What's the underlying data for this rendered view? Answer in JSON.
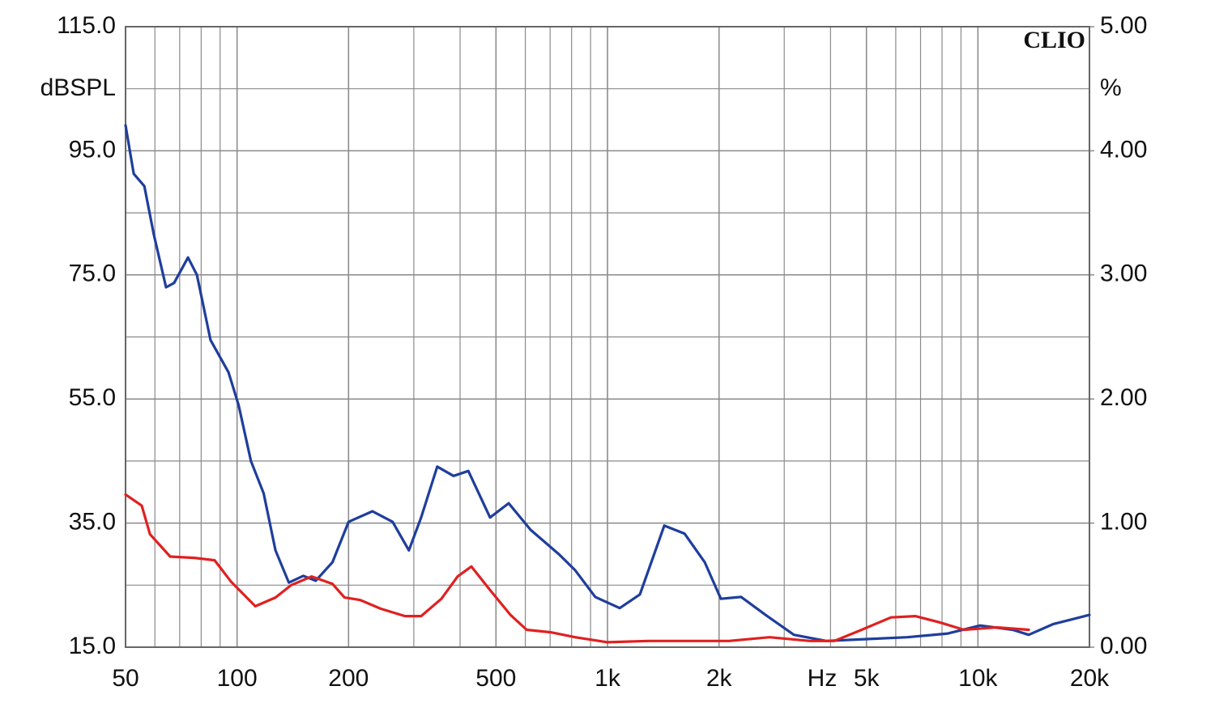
{
  "chart_data": {
    "type": "line",
    "logo": "CLIO",
    "ylabel": "dBSPL",
    "y2label": "%",
    "xlabel": "Hz",
    "xscale": "log",
    "xlim": [
      50,
      20000
    ],
    "xticks": [
      50,
      100,
      200,
      500,
      {
        "value": 1000,
        "label": "1k"
      },
      {
        "value": 2000,
        "label": "2k"
      },
      {
        "value": 5000,
        "label": "5k"
      },
      {
        "value": 10000,
        "label": "10k"
      },
      {
        "value": 20000,
        "label": "20k"
      }
    ],
    "ylim": [
      15,
      115
    ],
    "yticks": [
      {
        "value": 15,
        "label": "15.0"
      },
      {
        "value": 35,
        "label": "35.0"
      },
      {
        "value": 55,
        "label": "55.0"
      },
      {
        "value": 75,
        "label": "75.0"
      },
      {
        "value": 95,
        "label": "95.0"
      },
      {
        "value": 115,
        "label": "115.0"
      }
    ],
    "yminor": [
      25,
      45,
      65,
      85,
      105
    ],
    "y2lim": [
      0,
      5
    ],
    "y2ticks": [
      {
        "value": 0,
        "label": "0.00"
      },
      {
        "value": 1,
        "label": "1.00"
      },
      {
        "value": 2,
        "label": "2.00"
      },
      {
        "value": 3,
        "label": "3.00"
      },
      {
        "value": 4,
        "label": "4.00"
      },
      {
        "value": 5,
        "label": "5.00"
      }
    ],
    "grid": true,
    "series": [
      {
        "color": "#1f3e9c",
        "x": [
          50,
          52.6,
          56.2,
          59.6,
          64.3,
          67.6,
          73.7,
          77.9,
          84.8,
          94.8,
          101,
          109,
          118,
          127,
          138,
          151,
          163,
          181,
          200,
          232,
          263,
          291,
          314,
          347,
          384,
          421,
          482,
          541,
          620,
          739,
          818,
          927,
          1079,
          1223,
          1423,
          1614,
          1830,
          2024,
          2295,
          2670,
          3185,
          3894,
          5008,
          6443,
          8290,
          10140,
          12400,
          13710,
          15940,
          20000
        ],
        "values": [
          99.1,
          91.3,
          89.3,
          81.5,
          73,
          73.7,
          77.8,
          75,
          64.5,
          59.3,
          54,
          45,
          39.8,
          30.6,
          25.4,
          26.5,
          25.7,
          28.7,
          35.2,
          36.9,
          35.2,
          30.6,
          35.9,
          44.1,
          42.6,
          43.4,
          35.9,
          38.2,
          33.9,
          30,
          27.4,
          23.1,
          21.3,
          23.5,
          34.6,
          33.3,
          28.7,
          22.8,
          23.1,
          20.2,
          17,
          16,
          16.3,
          16.6,
          17.2,
          18.5,
          17.8,
          17,
          18.7,
          20.2
        ]
      },
      {
        "color": "#e02020",
        "axis": "y2",
        "x": [
          50,
          55.3,
          58.2,
          66,
          76.7,
          87,
          96.2,
          112,
          127,
          140,
          159,
          181,
          195,
          215,
          244,
          284,
          314,
          356,
          394,
          429,
          482,
          547,
          605,
          703,
          818,
          1000,
          1287,
          1655,
          2128,
          2737,
          3520,
          4095,
          4760,
          5825,
          6775,
          7880,
          9165,
          11210,
          13710
        ],
        "values": [
          1.23,
          1.14,
          0.91,
          0.73,
          0.72,
          0.7,
          0.53,
          0.33,
          0.4,
          0.5,
          0.57,
          0.51,
          0.4,
          0.38,
          0.31,
          0.25,
          0.25,
          0.39,
          0.57,
          0.65,
          0.46,
          0.26,
          0.14,
          0.12,
          0.08,
          0.04,
          0.05,
          0.05,
          0.05,
          0.08,
          0.05,
          0.05,
          0.13,
          0.24,
          0.25,
          0.2,
          0.14,
          0.16,
          0.14
        ]
      }
    ]
  }
}
